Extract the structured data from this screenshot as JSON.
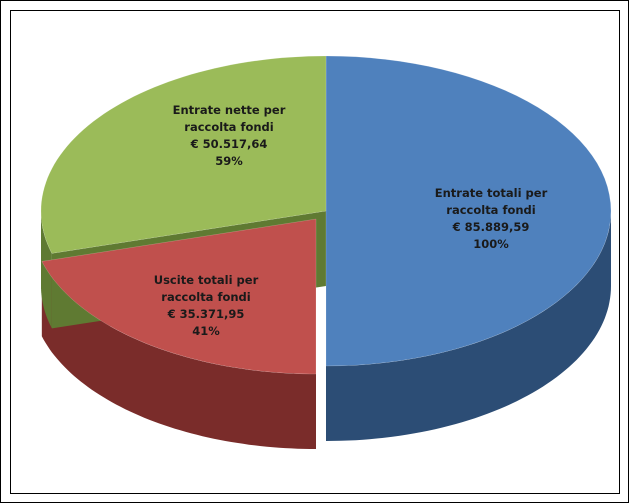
{
  "chart_data": {
    "type": "pie3d",
    "categories": [
      "Entrate totali per raccolta fondi",
      "Uscite totali per raccolta fondi",
      "Entrate nette per raccolta fondi"
    ],
    "values": [
      85889.59,
      35371.95,
      50517.64
    ],
    "value_labels": [
      "€ 85.889,59",
      "€ 35.371,95",
      "€ 50.517,64"
    ],
    "percents": [
      100,
      41,
      59
    ],
    "percent_labels": [
      "100%",
      "41%",
      "59%"
    ],
    "colors": [
      "#4f81bd",
      "#c0504d",
      "#9bbb59"
    ],
    "side_colors": [
      "#2c4d75",
      "#7a2c2a",
      "#5f7a32"
    ]
  }
}
